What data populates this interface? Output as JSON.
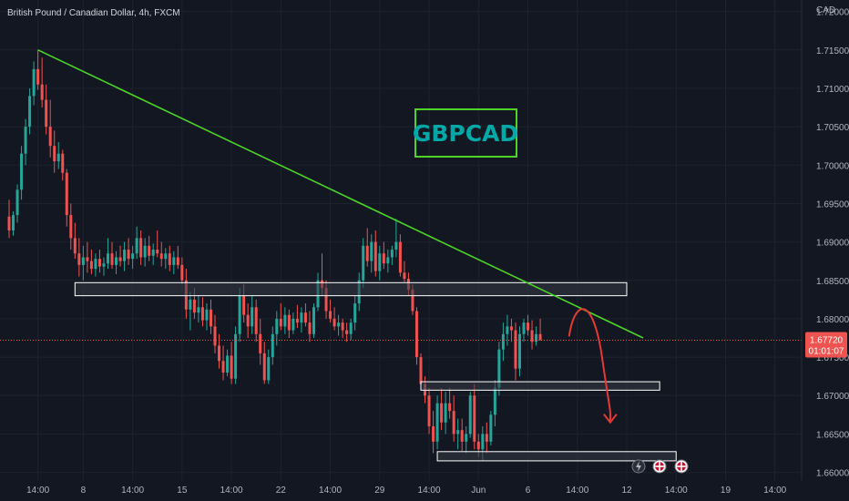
{
  "header": {
    "symbol_title": "British Pound / Canadian Dollar, 4h, FXCM"
  },
  "axis": {
    "currency_label": "CAD"
  },
  "colors": {
    "background": "#131722",
    "bull": "#26a69a",
    "bear": "#ef5350",
    "trendline": "#4cd427",
    "zone_fill": "#363a45",
    "zone_border": "#ffffff",
    "projection": "#e53935",
    "price_tag": "#ef5350",
    "label_box": "#4cd427",
    "label_text": "#00a8a8"
  },
  "annotations": {
    "label_text": "GBPCAD",
    "price_tag_value": "1.67720",
    "price_tag_countdown": "01:01:07",
    "event_icons": [
      "lightning-icon",
      "uk-flag-icon",
      "uk-flag-icon"
    ]
  },
  "chart_data": {
    "type": "candlestick",
    "title": "British Pound / Canadian Dollar, 4h, FXCM",
    "ylabel": "CAD",
    "ylim": [
      1.659,
      1.7215
    ],
    "y_ticks": [
      "1.72000",
      "1.71500",
      "1.71000",
      "1.70500",
      "1.70000",
      "1.69500",
      "1.69000",
      "1.68500",
      "1.68000",
      "1.67500",
      "1.67000",
      "1.66500",
      "1.66000"
    ],
    "x_ticks": [
      {
        "label": "14:00",
        "bar": 7
      },
      {
        "label": "8",
        "bar": 18
      },
      {
        "label": "14:00",
        "bar": 30
      },
      {
        "label": "15",
        "bar": 42
      },
      {
        "label": "14:00",
        "bar": 54
      },
      {
        "label": "22",
        "bar": 66
      },
      {
        "label": "14:00",
        "bar": 78
      },
      {
        "label": "29",
        "bar": 90
      },
      {
        "label": "14:00",
        "bar": 102
      },
      {
        "label": "Jun",
        "bar": 114
      },
      {
        "label": "6",
        "bar": 126
      },
      {
        "label": "14:00",
        "bar": 138
      },
      {
        "label": "12",
        "bar": 150
      },
      {
        "label": "14:00",
        "bar": 162
      },
      {
        "label": "19",
        "bar": 174
      },
      {
        "label": "14:00",
        "bar": 186
      }
    ],
    "last_price": 1.6772,
    "candles": [
      [
        1.6933,
        1.6955,
        1.6905,
        1.6915
      ],
      [
        1.6915,
        1.694,
        1.6908,
        1.6935
      ],
      [
        1.6935,
        1.6975,
        1.6925,
        1.6968
      ],
      [
        1.6968,
        1.7025,
        1.6955,
        1.7015
      ],
      [
        1.7015,
        1.706,
        1.7,
        1.705
      ],
      [
        1.705,
        1.71,
        1.704,
        1.709
      ],
      [
        1.709,
        1.7135,
        1.7078,
        1.7125
      ],
      [
        1.7125,
        1.715,
        1.7098,
        1.7105
      ],
      [
        1.7105,
        1.714,
        1.7075,
        1.7085
      ],
      [
        1.7085,
        1.7105,
        1.704,
        1.705
      ],
      [
        1.705,
        1.7085,
        1.701,
        1.7025
      ],
      [
        1.7025,
        1.7045,
        1.699,
        1.7005
      ],
      [
        1.7005,
        1.703,
        1.6995,
        1.7015
      ],
      [
        1.7015,
        1.702,
        1.698,
        1.699
      ],
      [
        1.699,
        1.6995,
        1.692,
        1.6935
      ],
      [
        1.6935,
        1.695,
        1.689,
        1.6905
      ],
      [
        1.6905,
        1.6925,
        1.6878,
        1.6885
      ],
      [
        1.6885,
        1.6905,
        1.6855,
        1.687
      ],
      [
        1.687,
        1.6895,
        1.685,
        1.688
      ],
      [
        1.688,
        1.69,
        1.686,
        1.6875
      ],
      [
        1.6875,
        1.689,
        1.6858,
        1.6865
      ],
      [
        1.6865,
        1.6885,
        1.6855,
        1.6878
      ],
      [
        1.6878,
        1.689,
        1.686,
        1.6868
      ],
      [
        1.6868,
        1.688,
        1.6856,
        1.6872
      ],
      [
        1.6872,
        1.6905,
        1.6865,
        1.6885
      ],
      [
        1.6885,
        1.69,
        1.6865,
        1.687
      ],
      [
        1.687,
        1.6888,
        1.6858,
        1.688
      ],
      [
        1.688,
        1.6895,
        1.6868,
        1.6875
      ],
      [
        1.6875,
        1.69,
        1.6862,
        1.689
      ],
      [
        1.689,
        1.6905,
        1.687,
        1.6878
      ],
      [
        1.6878,
        1.6895,
        1.6865,
        1.6885
      ],
      [
        1.6885,
        1.692,
        1.6878,
        1.6905
      ],
      [
        1.6905,
        1.6915,
        1.687,
        1.688
      ],
      [
        1.688,
        1.6905,
        1.6868,
        1.6895
      ],
      [
        1.6895,
        1.6908,
        1.6875,
        1.6882
      ],
      [
        1.6882,
        1.6898,
        1.687,
        1.689
      ],
      [
        1.689,
        1.6915,
        1.688,
        1.6885
      ],
      [
        1.6885,
        1.69,
        1.6868,
        1.6878
      ],
      [
        1.6878,
        1.6892,
        1.6865,
        1.6885
      ],
      [
        1.6885,
        1.6895,
        1.6862,
        1.687
      ],
      [
        1.687,
        1.6888,
        1.6858,
        1.688
      ],
      [
        1.688,
        1.6895,
        1.6865,
        1.687
      ],
      [
        1.687,
        1.688,
        1.6845,
        1.685
      ],
      [
        1.685,
        1.6865,
        1.68,
        1.6812
      ],
      [
        1.6812,
        1.6835,
        1.6785,
        1.6825
      ],
      [
        1.6825,
        1.684,
        1.68,
        1.6808
      ],
      [
        1.6808,
        1.683,
        1.6795,
        1.6815
      ],
      [
        1.6815,
        1.6828,
        1.679,
        1.6798
      ],
      [
        1.6798,
        1.682,
        1.6785,
        1.6812
      ],
      [
        1.6812,
        1.6825,
        1.678,
        1.679
      ],
      [
        1.679,
        1.6805,
        1.6755,
        1.6765
      ],
      [
        1.6765,
        1.678,
        1.6735,
        1.6745
      ],
      [
        1.6745,
        1.6765,
        1.672,
        1.673
      ],
      [
        1.673,
        1.676,
        1.6725,
        1.6752
      ],
      [
        1.6752,
        1.677,
        1.6715,
        1.6722
      ],
      [
        1.6722,
        1.679,
        1.6715,
        1.678
      ],
      [
        1.678,
        1.684,
        1.677,
        1.683
      ],
      [
        1.683,
        1.6845,
        1.6795,
        1.6805
      ],
      [
        1.6805,
        1.682,
        1.6775,
        1.679
      ],
      [
        1.679,
        1.683,
        1.678,
        1.6815
      ],
      [
        1.6815,
        1.6825,
        1.677,
        1.678
      ],
      [
        1.678,
        1.68,
        1.674,
        1.6755
      ],
      [
        1.6755,
        1.677,
        1.6715,
        1.672
      ],
      [
        1.672,
        1.676,
        1.6715,
        1.675
      ],
      [
        1.675,
        1.679,
        1.674,
        1.678
      ],
      [
        1.678,
        1.681,
        1.6765,
        1.68
      ],
      [
        1.68,
        1.682,
        1.6785,
        1.679
      ],
      [
        1.679,
        1.6815,
        1.678,
        1.6805
      ],
      [
        1.6805,
        1.6812,
        1.6775,
        1.6785
      ],
      [
        1.6785,
        1.6808,
        1.678,
        1.68
      ],
      [
        1.68,
        1.6818,
        1.6788,
        1.6795
      ],
      [
        1.6795,
        1.6815,
        1.6782,
        1.6808
      ],
      [
        1.6808,
        1.682,
        1.679,
        1.6795
      ],
      [
        1.6795,
        1.681,
        1.677,
        1.678
      ],
      [
        1.678,
        1.682,
        1.6775,
        1.6815
      ],
      [
        1.6815,
        1.686,
        1.681,
        1.685
      ],
      [
        1.685,
        1.6885,
        1.683,
        1.684
      ],
      [
        1.684,
        1.685,
        1.68,
        1.681
      ],
      [
        1.681,
        1.6825,
        1.6795,
        1.68
      ],
      [
        1.68,
        1.6815,
        1.6785,
        1.679
      ],
      [
        1.679,
        1.6805,
        1.6778,
        1.6795
      ],
      [
        1.6795,
        1.68,
        1.6775,
        1.6785
      ],
      [
        1.6785,
        1.6795,
        1.677,
        1.678
      ],
      [
        1.678,
        1.68,
        1.6772,
        1.6795
      ],
      [
        1.6795,
        1.683,
        1.6785,
        1.682
      ],
      [
        1.682,
        1.686,
        1.681,
        1.685
      ],
      [
        1.685,
        1.6905,
        1.684,
        1.6895
      ],
      [
        1.6895,
        1.6918,
        1.6868,
        1.6875
      ],
      [
        1.6875,
        1.691,
        1.686,
        1.69
      ],
      [
        1.69,
        1.6915,
        1.6855,
        1.6862
      ],
      [
        1.6862,
        1.6895,
        1.685,
        1.6885
      ],
      [
        1.6885,
        1.69,
        1.6865,
        1.6872
      ],
      [
        1.6872,
        1.689,
        1.686,
        1.688
      ],
      [
        1.688,
        1.6895,
        1.687,
        1.689
      ],
      [
        1.689,
        1.693,
        1.688,
        1.69
      ],
      [
        1.69,
        1.691,
        1.6855,
        1.686
      ],
      [
        1.686,
        1.6875,
        1.6848,
        1.6852
      ],
      [
        1.6852,
        1.686,
        1.683,
        1.6838
      ],
      [
        1.6838,
        1.6845,
        1.6805,
        1.681
      ],
      [
        1.681,
        1.6815,
        1.674,
        1.675
      ],
      [
        1.675,
        1.6755,
        1.671,
        1.6715
      ],
      [
        1.6715,
        1.6725,
        1.669,
        1.67
      ],
      [
        1.67,
        1.671,
        1.665,
        1.666
      ],
      [
        1.666,
        1.668,
        1.6625,
        1.664
      ],
      [
        1.664,
        1.67,
        1.663,
        1.669
      ],
      [
        1.669,
        1.671,
        1.6655,
        1.6665
      ],
      [
        1.6665,
        1.6705,
        1.665,
        1.669
      ],
      [
        1.669,
        1.671,
        1.667,
        1.668
      ],
      [
        1.668,
        1.67,
        1.664,
        1.665
      ],
      [
        1.665,
        1.667,
        1.663,
        1.6655
      ],
      [
        1.6655,
        1.667,
        1.6628,
        1.664
      ],
      [
        1.664,
        1.666,
        1.6625,
        1.665
      ],
      [
        1.665,
        1.6705,
        1.6645,
        1.67
      ],
      [
        1.67,
        1.6715,
        1.663,
        1.664
      ],
      [
        1.664,
        1.665,
        1.662,
        1.663
      ],
      [
        1.663,
        1.666,
        1.6615,
        1.665
      ],
      [
        1.665,
        1.6665,
        1.6625,
        1.664
      ],
      [
        1.664,
        1.668,
        1.6635,
        1.6675
      ],
      [
        1.6675,
        1.672,
        1.666,
        1.671
      ],
      [
        1.671,
        1.677,
        1.67,
        1.676
      ],
      [
        1.676,
        1.6795,
        1.6745,
        1.678
      ],
      [
        1.678,
        1.6805,
        1.6765,
        1.679
      ],
      [
        1.679,
        1.68,
        1.677,
        1.6785
      ],
      [
        1.6785,
        1.6795,
        1.672,
        1.6735
      ],
      [
        1.6735,
        1.679,
        1.6725,
        1.678
      ],
      [
        1.678,
        1.68,
        1.677,
        1.6795
      ],
      [
        1.6795,
        1.6805,
        1.6778,
        1.6785
      ],
      [
        1.6785,
        1.6798,
        1.676,
        1.677
      ],
      [
        1.677,
        1.679,
        1.6765,
        1.678
      ],
      [
        1.678,
        1.68,
        1.6772,
        1.6772
      ]
    ],
    "trendline": {
      "from": {
        "bar": 7,
        "price": 1.715
      },
      "to": {
        "bar": 154,
        "price": 1.6775
      }
    },
    "zones": [
      {
        "from_bar": 16,
        "to_bar": 150,
        "price_high": 1.6847,
        "price_low": 1.683
      },
      {
        "from_bar": 100,
        "to_bar": 158,
        "price_high": 1.6718,
        "price_low": 1.6707
      },
      {
        "from_bar": 104,
        "to_bar": 162,
        "price_high": 1.6627,
        "price_low": 1.6615
      }
    ],
    "projection": {
      "points": [
        {
          "bar": 136,
          "price": 1.6777
        },
        {
          "bar": 140,
          "price": 1.6818
        },
        {
          "bar": 144,
          "price": 1.675
        },
        {
          "bar": 146,
          "price": 1.6665
        }
      ]
    }
  }
}
